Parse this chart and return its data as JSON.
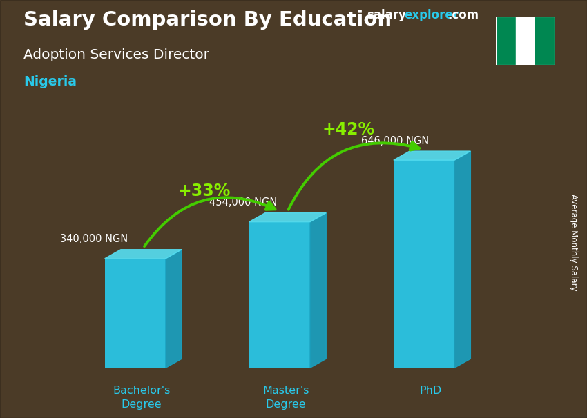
{
  "title_salary": "Salary Comparison By Education",
  "subtitle": "Adoption Services Director",
  "country": "Nigeria",
  "ylabel": "Average Monthly Salary",
  "categories": [
    "Bachelor's\nDegree",
    "Master's\nDegree",
    "PhD"
  ],
  "values": [
    340000,
    454000,
    646000
  ],
  "value_labels": [
    "340,000 NGN",
    "454,000 NGN",
    "646,000 NGN"
  ],
  "pct_labels": [
    "+33%",
    "+42%"
  ],
  "bar_front_color": "#29c9ea",
  "bar_top_color": "#55ddf0",
  "bar_side_color": "#1aa0bf",
  "title_color": "#ffffff",
  "subtitle_color": "#ffffff",
  "country_color": "#29c9ea",
  "value_label_color": "#ffffff",
  "pct_color": "#88ee00",
  "arrow_color": "#44cc00",
  "brand_salary_color": "#ffffff",
  "brand_explorer_color": "#29c9ea",
  "brand_com_color": "#ffffff",
  "flag_green": "#008751",
  "flag_white": "#ffffff",
  "bg_color": "#7a6040",
  "ylim": [
    0,
    780000
  ],
  "bar_width": 0.38,
  "bar_positions": [
    0.55,
    1.45,
    2.35
  ],
  "xlim": [
    0,
    3.0
  ],
  "depth_x": 0.1,
  "depth_y": 28000
}
